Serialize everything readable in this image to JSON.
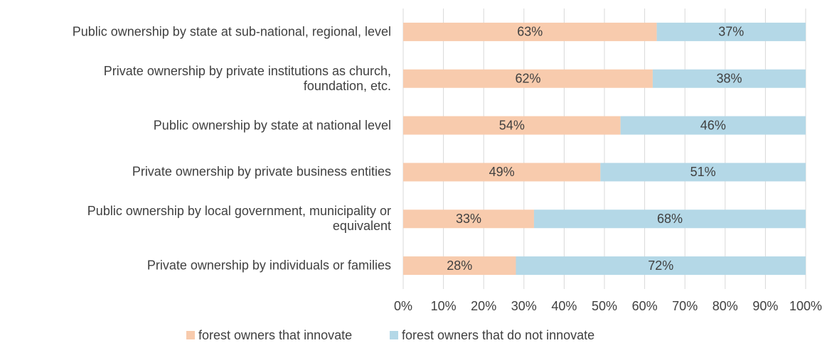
{
  "chart_data": {
    "type": "stacked_bar_horizontal",
    "categories": [
      "Public ownership by state at sub-national, regional, level",
      "Private ownership by private institutions as church,\nfoundation, etc.",
      "Public ownership by state at national level",
      "Private ownership by private business entities",
      "Public ownership by local government, municipality or\nequivalent",
      "Private ownership by individuals or families"
    ],
    "series": [
      {
        "name": "forest owners that innovate",
        "color": "#f8cbad",
        "values": [
          63,
          62,
          54,
          49,
          32.5,
          28
        ],
        "value_labels": [
          "63%",
          "62%",
          "54%",
          "49%",
          "33%",
          "28%"
        ]
      },
      {
        "name": "forest owners that do not innovate",
        "color": "#b4d8e7",
        "values": [
          37,
          38,
          46,
          51,
          67.5,
          72
        ],
        "value_labels": [
          "37%",
          "38%",
          "46%",
          "51%",
          "68%",
          "72%"
        ]
      }
    ],
    "xlim": [
      0,
      100
    ],
    "xticks": [
      {
        "value": 0,
        "label": "0%"
      },
      {
        "value": 10,
        "label": "10%"
      },
      {
        "value": 20,
        "label": "20%"
      },
      {
        "value": 30,
        "label": "30%"
      },
      {
        "value": 40,
        "label": "40%"
      },
      {
        "value": 50,
        "label": "50%"
      },
      {
        "value": 60,
        "label": "60%"
      },
      {
        "value": 70,
        "label": "70%"
      },
      {
        "value": 80,
        "label": "80%"
      },
      {
        "value": 90,
        "label": "90%"
      },
      {
        "value": 100,
        "label": "100%"
      }
    ],
    "grid": true,
    "legend": "bottom"
  }
}
